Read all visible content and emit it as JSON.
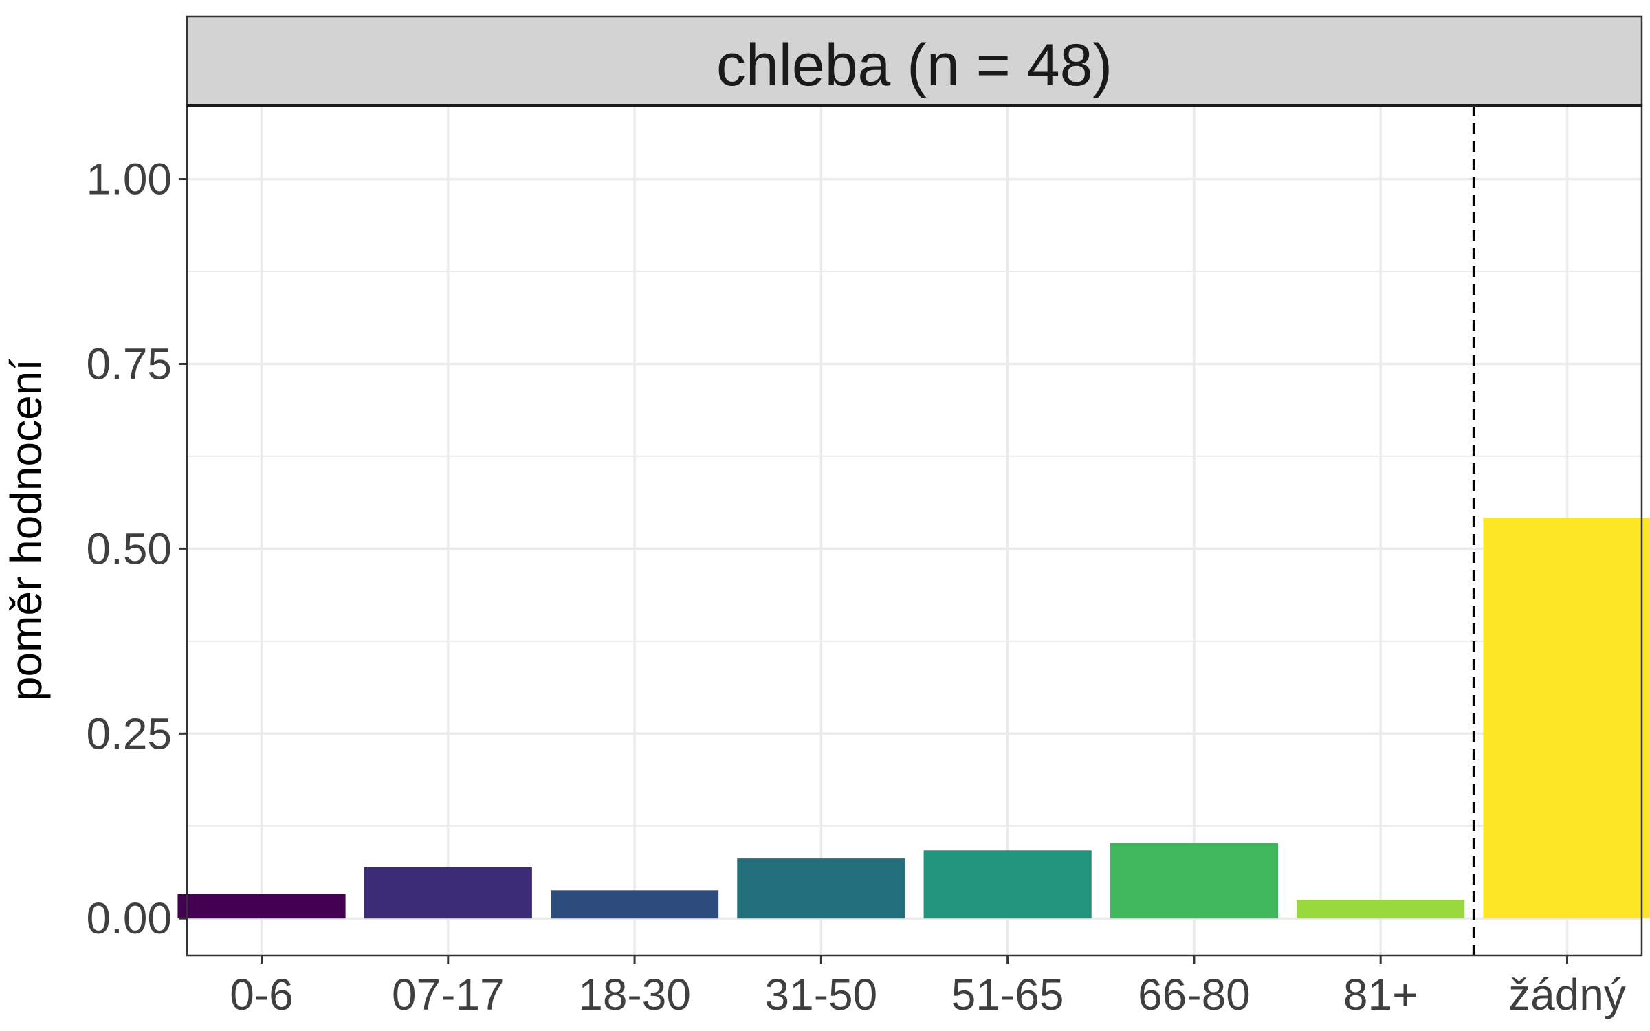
{
  "chart_data": {
    "type": "bar",
    "title": "chleba (n = 48)",
    "xlabel": "",
    "ylabel": "poměr hodnocení",
    "categories": [
      "0-6",
      "07-17",
      "18-30",
      "31-50",
      "51-65",
      "66-80",
      "81+",
      "žádný"
    ],
    "values": [
      0.033,
      0.069,
      0.038,
      0.081,
      0.092,
      0.102,
      0.025,
      0.542
    ],
    "colors": [
      "#440154",
      "#3b2a74",
      "#2b4c7d",
      "#23707c",
      "#21947b",
      "#40b75c",
      "#98d93b",
      "#fde725"
    ],
    "ylim": [
      -0.05,
      1.1
    ],
    "yticks": [
      0.0,
      0.25,
      0.5,
      0.75,
      1.0
    ],
    "ytick_labels": [
      "0.00",
      "0.25",
      "0.50",
      "0.75",
      "1.00"
    ],
    "reference_line": {
      "between": [
        "81+",
        "žádný"
      ],
      "style": "dashed",
      "color": "#000000"
    },
    "grid": true,
    "facet_strip_color": "#d3d3d3",
    "legend": "none"
  }
}
